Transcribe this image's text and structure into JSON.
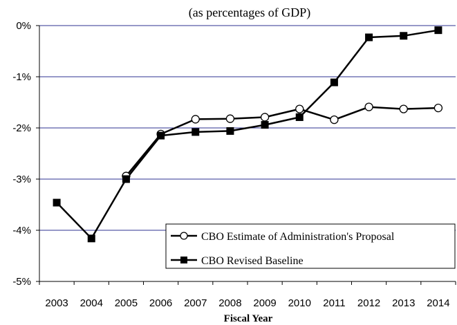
{
  "chart_data": {
    "type": "line",
    "title": "",
    "subtitle": "(as percentages of GDP)",
    "xlabel": "Fiscal Year",
    "ylabel": "",
    "categories": [
      "2003",
      "2004",
      "2005",
      "2006",
      "2007",
      "2008",
      "2009",
      "2010",
      "2011",
      "2012",
      "2013",
      "2014"
    ],
    "ylim": [
      -5,
      0
    ],
    "yticks": [
      0,
      -1,
      -2,
      -3,
      -4,
      -5
    ],
    "ytick_labels": [
      "0%",
      "-1%",
      "-2%",
      "-3%",
      "-4%",
      "-5%"
    ],
    "grid": "horizontal",
    "legend_position": "bottom-right",
    "series": [
      {
        "name": "CBO Estimate of Administration's Proposal",
        "marker": "open-circle",
        "color": "#000000",
        "values": [
          null,
          null,
          -2.94,
          -2.12,
          -1.83,
          -1.82,
          -1.79,
          -1.63,
          -1.84,
          -1.59,
          -1.63,
          -1.61
        ]
      },
      {
        "name": "CBO Revised Baseline",
        "marker": "filled-square",
        "color": "#000000",
        "values": [
          -3.46,
          -4.16,
          -3.0,
          -2.15,
          -2.08,
          -2.06,
          -1.94,
          -1.79,
          -1.11,
          -0.23,
          -0.2,
          -0.09
        ]
      }
    ],
    "colors": {
      "gridline": "#2e3192",
      "axis": "#000000"
    }
  }
}
